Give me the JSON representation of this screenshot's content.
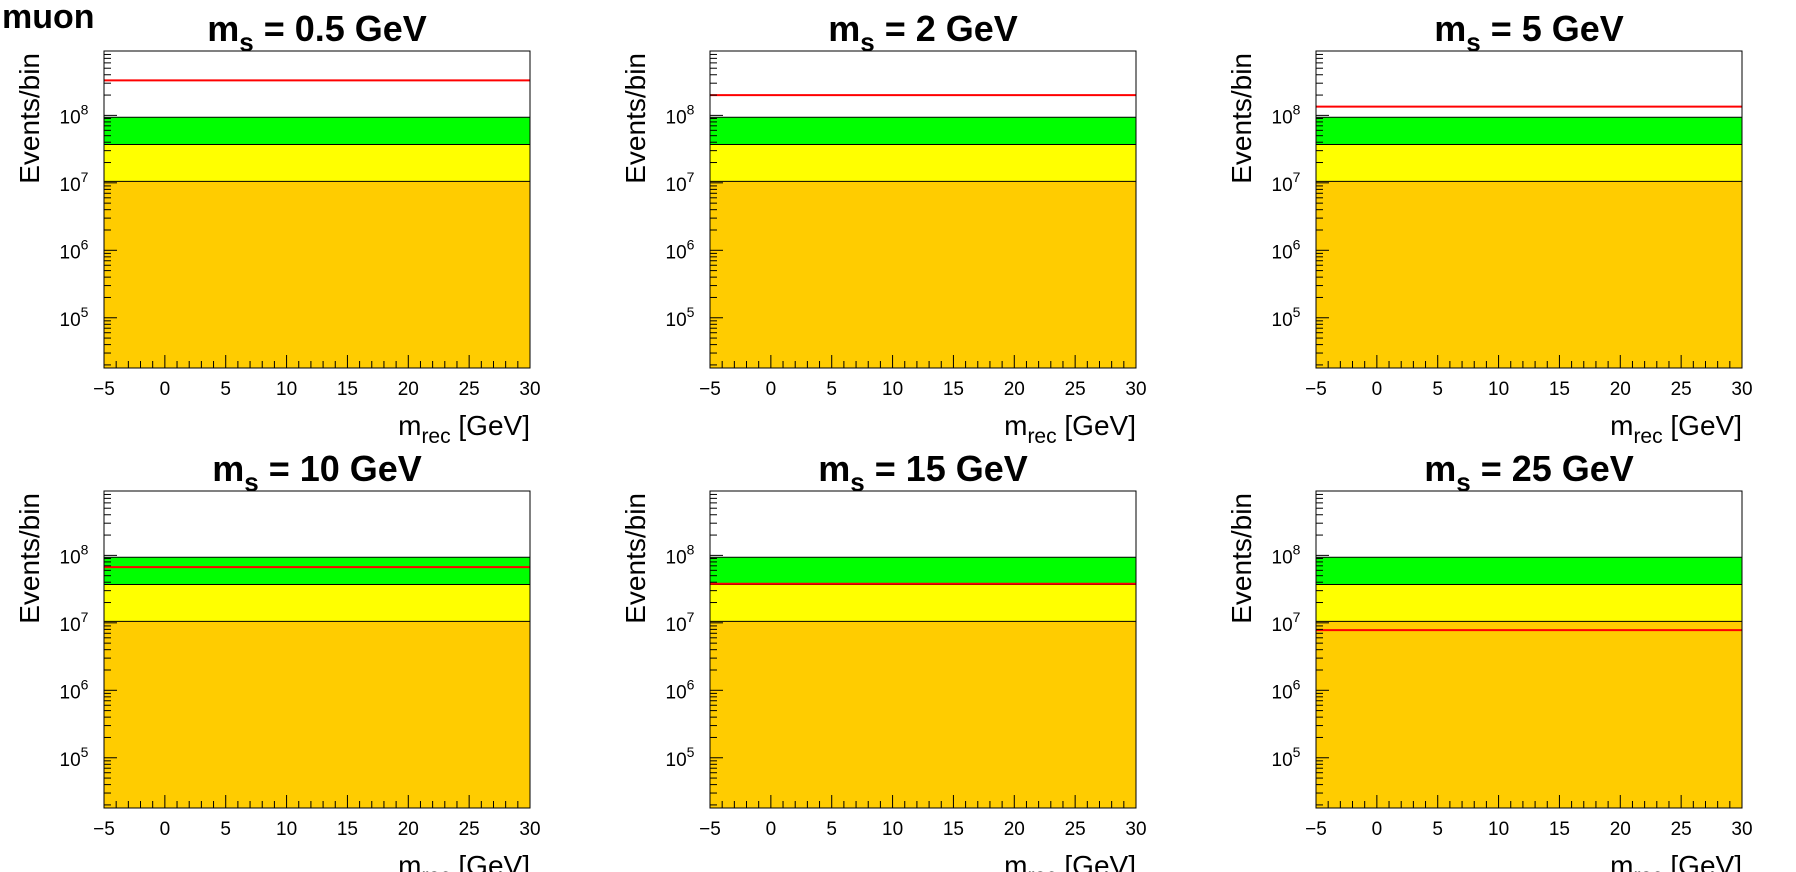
{
  "figure_label": "muon",
  "chart_data": [
    {
      "type": "area",
      "title": {
        "prefix": "m",
        "sub": "s",
        "suffix": " = 0.5 GeV"
      },
      "xlabel": {
        "main": "m",
        "sub": "rec",
        "suffix": " [GeV]"
      },
      "ylabel": "Events/bin",
      "xlim": [
        -5,
        30
      ],
      "ylim": [
        18000,
        900000000
      ],
      "ylog": true,
      "xticks": [
        -5,
        0,
        5,
        10,
        15,
        20,
        25,
        30
      ],
      "yticks": [
        {
          "base": "10",
          "exp": "5",
          "value": 100000
        },
        {
          "base": "10",
          "exp": "6",
          "value": 1000000
        },
        {
          "base": "10",
          "exp": "7",
          "value": 10000000
        },
        {
          "base": "10",
          "exp": "8",
          "value": 100000000
        }
      ],
      "bands": {
        "orange_top": 10500000,
        "yellow_top": 37000000,
        "green_top": 94000000
      },
      "signal": 330000000,
      "colors": {
        "orange": "#ffcc00",
        "yellow": "#ffff00",
        "green": "#00ff00",
        "signal": "#ff0000"
      }
    },
    {
      "type": "area",
      "title": {
        "prefix": "m",
        "sub": "s",
        "suffix": " = 2 GeV"
      },
      "xlabel": {
        "main": "m",
        "sub": "rec",
        "suffix": " [GeV]"
      },
      "ylabel": "Events/bin",
      "xlim": [
        -5,
        30
      ],
      "ylim": [
        18000,
        900000000
      ],
      "ylog": true,
      "xticks": [
        -5,
        0,
        5,
        10,
        15,
        20,
        25,
        30
      ],
      "yticks": [
        {
          "base": "10",
          "exp": "5",
          "value": 100000
        },
        {
          "base": "10",
          "exp": "6",
          "value": 1000000
        },
        {
          "base": "10",
          "exp": "7",
          "value": 10000000
        },
        {
          "base": "10",
          "exp": "8",
          "value": 100000000
        }
      ],
      "bands": {
        "orange_top": 10500000,
        "yellow_top": 37000000,
        "green_top": 94000000
      },
      "signal": 200000000,
      "colors": {
        "orange": "#ffcc00",
        "yellow": "#ffff00",
        "green": "#00ff00",
        "signal": "#ff0000"
      }
    },
    {
      "type": "area",
      "title": {
        "prefix": "m",
        "sub": "s",
        "suffix": " = 5 GeV"
      },
      "xlabel": {
        "main": "m",
        "sub": "rec",
        "suffix": " [GeV]"
      },
      "ylabel": "Events/bin",
      "xlim": [
        -5,
        30
      ],
      "ylim": [
        18000,
        900000000
      ],
      "ylog": true,
      "xticks": [
        -5,
        0,
        5,
        10,
        15,
        20,
        25,
        30
      ],
      "yticks": [
        {
          "base": "10",
          "exp": "5",
          "value": 100000
        },
        {
          "base": "10",
          "exp": "6",
          "value": 1000000
        },
        {
          "base": "10",
          "exp": "7",
          "value": 10000000
        },
        {
          "base": "10",
          "exp": "8",
          "value": 100000000
        }
      ],
      "bands": {
        "orange_top": 10500000,
        "yellow_top": 37000000,
        "green_top": 94000000
      },
      "signal": 135000000,
      "colors": {
        "orange": "#ffcc00",
        "yellow": "#ffff00",
        "green": "#00ff00",
        "signal": "#ff0000"
      }
    },
    {
      "type": "area",
      "title": {
        "prefix": "m",
        "sub": "s",
        "suffix": " = 10 GeV"
      },
      "xlabel": {
        "main": "m",
        "sub": "rec",
        "suffix": " [GeV]"
      },
      "ylabel": "Events/bin",
      "xlim": [
        -5,
        30
      ],
      "ylim": [
        18000,
        900000000
      ],
      "ylog": true,
      "xticks": [
        -5,
        0,
        5,
        10,
        15,
        20,
        25,
        30
      ],
      "yticks": [
        {
          "base": "10",
          "exp": "5",
          "value": 100000
        },
        {
          "base": "10",
          "exp": "6",
          "value": 1000000
        },
        {
          "base": "10",
          "exp": "7",
          "value": 10000000
        },
        {
          "base": "10",
          "exp": "8",
          "value": 100000000
        }
      ],
      "bands": {
        "orange_top": 10500000,
        "yellow_top": 37000000,
        "green_top": 94000000
      },
      "signal": 67000000,
      "colors": {
        "orange": "#ffcc00",
        "yellow": "#ffff00",
        "green": "#00ff00",
        "signal": "#ff0000"
      }
    },
    {
      "type": "area",
      "title": {
        "prefix": "m",
        "sub": "s",
        "suffix": " = 15 GeV"
      },
      "xlabel": {
        "main": "m",
        "sub": "rec",
        "suffix": " [GeV]"
      },
      "ylabel": "Events/bin",
      "xlim": [
        -5,
        30
      ],
      "ylim": [
        18000,
        900000000
      ],
      "ylog": true,
      "xticks": [
        -5,
        0,
        5,
        10,
        15,
        20,
        25,
        30
      ],
      "yticks": [
        {
          "base": "10",
          "exp": "5",
          "value": 100000
        },
        {
          "base": "10",
          "exp": "6",
          "value": 1000000
        },
        {
          "base": "10",
          "exp": "7",
          "value": 10000000
        },
        {
          "base": "10",
          "exp": "8",
          "value": 100000000
        }
      ],
      "bands": {
        "orange_top": 10500000,
        "yellow_top": 37000000,
        "green_top": 94000000
      },
      "signal": 38000000,
      "colors": {
        "orange": "#ffcc00",
        "yellow": "#ffff00",
        "green": "#00ff00",
        "signal": "#ff0000"
      }
    },
    {
      "type": "area",
      "title": {
        "prefix": "m",
        "sub": "s",
        "suffix": " = 25 GeV"
      },
      "xlabel": {
        "main": "m",
        "sub": "rec",
        "suffix": " [GeV]"
      },
      "ylabel": "Events/bin",
      "xlim": [
        -5,
        30
      ],
      "ylim": [
        18000,
        900000000
      ],
      "ylog": true,
      "xticks": [
        -5,
        0,
        5,
        10,
        15,
        20,
        25,
        30
      ],
      "yticks": [
        {
          "base": "10",
          "exp": "5",
          "value": 100000
        },
        {
          "base": "10",
          "exp": "6",
          "value": 1000000
        },
        {
          "base": "10",
          "exp": "7",
          "value": 10000000
        },
        {
          "base": "10",
          "exp": "8",
          "value": 100000000
        }
      ],
      "bands": {
        "orange_top": 10500000,
        "yellow_top": 37000000,
        "green_top": 94000000
      },
      "signal": 7800000,
      "colors": {
        "orange": "#ffcc00",
        "yellow": "#ffff00",
        "green": "#00ff00",
        "signal": "#ff0000"
      }
    }
  ]
}
